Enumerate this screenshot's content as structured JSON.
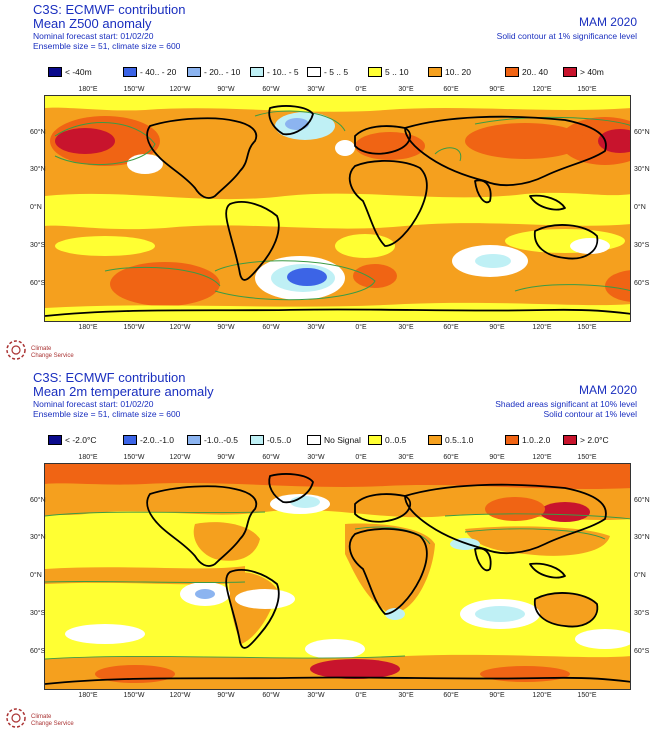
{
  "colors": {
    "text_blue": "#1a2fbf",
    "dark_blue": "#0a0a8c",
    "mid_blue": "#3c64e6",
    "light_blue": "#8cb4f0",
    "pale_cyan": "#bff0f5",
    "white": "#ffffff",
    "yellow": "#ffff33",
    "orange": "#f5a01e",
    "dark_orange": "#f06414",
    "red": "#c8142d",
    "contour_green": "#3b9b44"
  },
  "panels": [
    {
      "header": {
        "title1": "C3S: ECMWF contribution",
        "title2": "Mean Z500 anomaly",
        "line3": "Nominal forecast start: 01/02/20",
        "line4": "Ensemble size = 51, climate size = 600",
        "season": "MAM 2020",
        "note1": "Solid contour at 1% significance level",
        "note2": ""
      },
      "legend": [
        {
          "label": "< -40m",
          "color": "#0a0a8c"
        },
        {
          "label": "- 40.. - 20",
          "color": "#3c64e6"
        },
        {
          "label": "- 20.. - 10",
          "color": "#8cb4f0"
        },
        {
          "label": "- 10.. - 5",
          "color": "#bff0f5"
        },
        {
          "label": "- 5 .. 5",
          "color": "#ffffff"
        },
        {
          "label": "5 .. 10",
          "color": "#ffff33"
        },
        {
          "label": "10.. 20",
          "color": "#f5a01e"
        },
        {
          "label": "20.. 40",
          "color": "#f06414"
        },
        {
          "label": "> 40m",
          "color": "#c8142d"
        }
      ]
    },
    {
      "header": {
        "title1": "C3S: ECMWF contribution",
        "title2": "Mean 2m temperature anomaly",
        "line3": "Nominal forecast start: 01/02/20",
        "line4": "Ensemble size = 51, climate size = 600",
        "season": "MAM 2020",
        "note1": "Shaded areas significant at 10% level",
        "note2": "Solid contour at 1% level"
      },
      "legend": [
        {
          "label": "< -2.0°C",
          "color": "#0a0a8c"
        },
        {
          "label": "-2.0..-1.0",
          "color": "#3c64e6"
        },
        {
          "label": "-1.0..-0.5",
          "color": "#8cb4f0"
        },
        {
          "label": "-0.5..0",
          "color": "#bff0f5"
        },
        {
          "label": "No Signal",
          "color": "#ffffff"
        },
        {
          "label": "0..0.5",
          "color": "#ffff33"
        },
        {
          "label": "0.5..1.0",
          "color": "#f5a01e"
        },
        {
          "label": "1.0..2.0",
          "color": "#f06414"
        },
        {
          "label": "> 2.0°C",
          "color": "#c8142d"
        }
      ]
    }
  ],
  "axes": {
    "lon_labels": [
      "180°E",
      "150°W",
      "120°W",
      "90°W",
      "60°W",
      "30°W",
      "0°E",
      "30°E",
      "60°E",
      "90°E",
      "120°E",
      "150°E"
    ],
    "lat_labels": [
      "60°N",
      "30°N",
      "0°N",
      "30°S",
      "60°S"
    ]
  },
  "logo": {
    "name_line1": "Climate",
    "name_line2": "Change Service"
  }
}
